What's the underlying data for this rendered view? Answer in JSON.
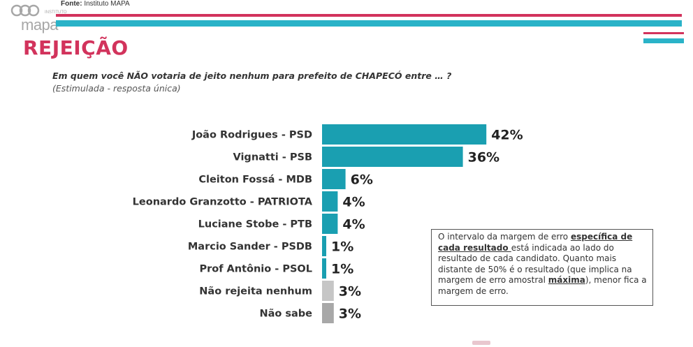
{
  "header": {
    "logo_word": "mapa",
    "logo_sub": "INSTITUTO",
    "source_label": "Fonte:",
    "source_value": "Instituto MAPA"
  },
  "title": "REJEIÇÃO",
  "question": "Em quem você NÃO votaria de jeito nenhum para prefeito de CHAPECÓ entre … ?",
  "question_note": "(Estimulada - resposta única)",
  "colors": {
    "brand_red": "#d2335c",
    "brand_cyan": "#2ab3c8",
    "bar_teal": "#1a9fb1",
    "bar_gray_light": "#c6c6c6",
    "bar_gray_dark": "#a8a8a8"
  },
  "chart_data": {
    "type": "bar",
    "orientation": "horizontal",
    "categories": [
      "João Rodrigues - PSD",
      "Vignatti - PSB",
      "Cleiton Fossá - MDB",
      "Leonardo Granzotto - PATRIOTA",
      "Luciane Stobe - PTB",
      "Marcio Sander - PSDB",
      "Prof Antônio - PSOL",
      "Não rejeita nenhum",
      "Não sabe"
    ],
    "values": [
      42,
      36,
      6,
      4,
      4,
      1,
      1,
      3,
      3
    ],
    "value_labels": [
      "42%",
      "36%",
      "6%",
      "4%",
      "4%",
      "1%",
      "1%",
      "3%",
      "3%"
    ],
    "bar_colors": [
      "#1a9fb1",
      "#1a9fb1",
      "#1a9fb1",
      "#1a9fb1",
      "#1a9fb1",
      "#1a9fb1",
      "#1a9fb1",
      "#c6c6c6",
      "#a8a8a8"
    ],
    "unit": "%",
    "grid": false,
    "legend": "none"
  },
  "info_box": {
    "t1": "O intervalo da margem de erro ",
    "em1": "específica de cada resultado ",
    "t2": "está indicada ao lado do resultado de cada candidato. Quanto mais distante de 50% é o resultado (que implica na margem de erro amostral ",
    "em2": "máxima",
    "t3": "), menor fica a margem de erro."
  }
}
